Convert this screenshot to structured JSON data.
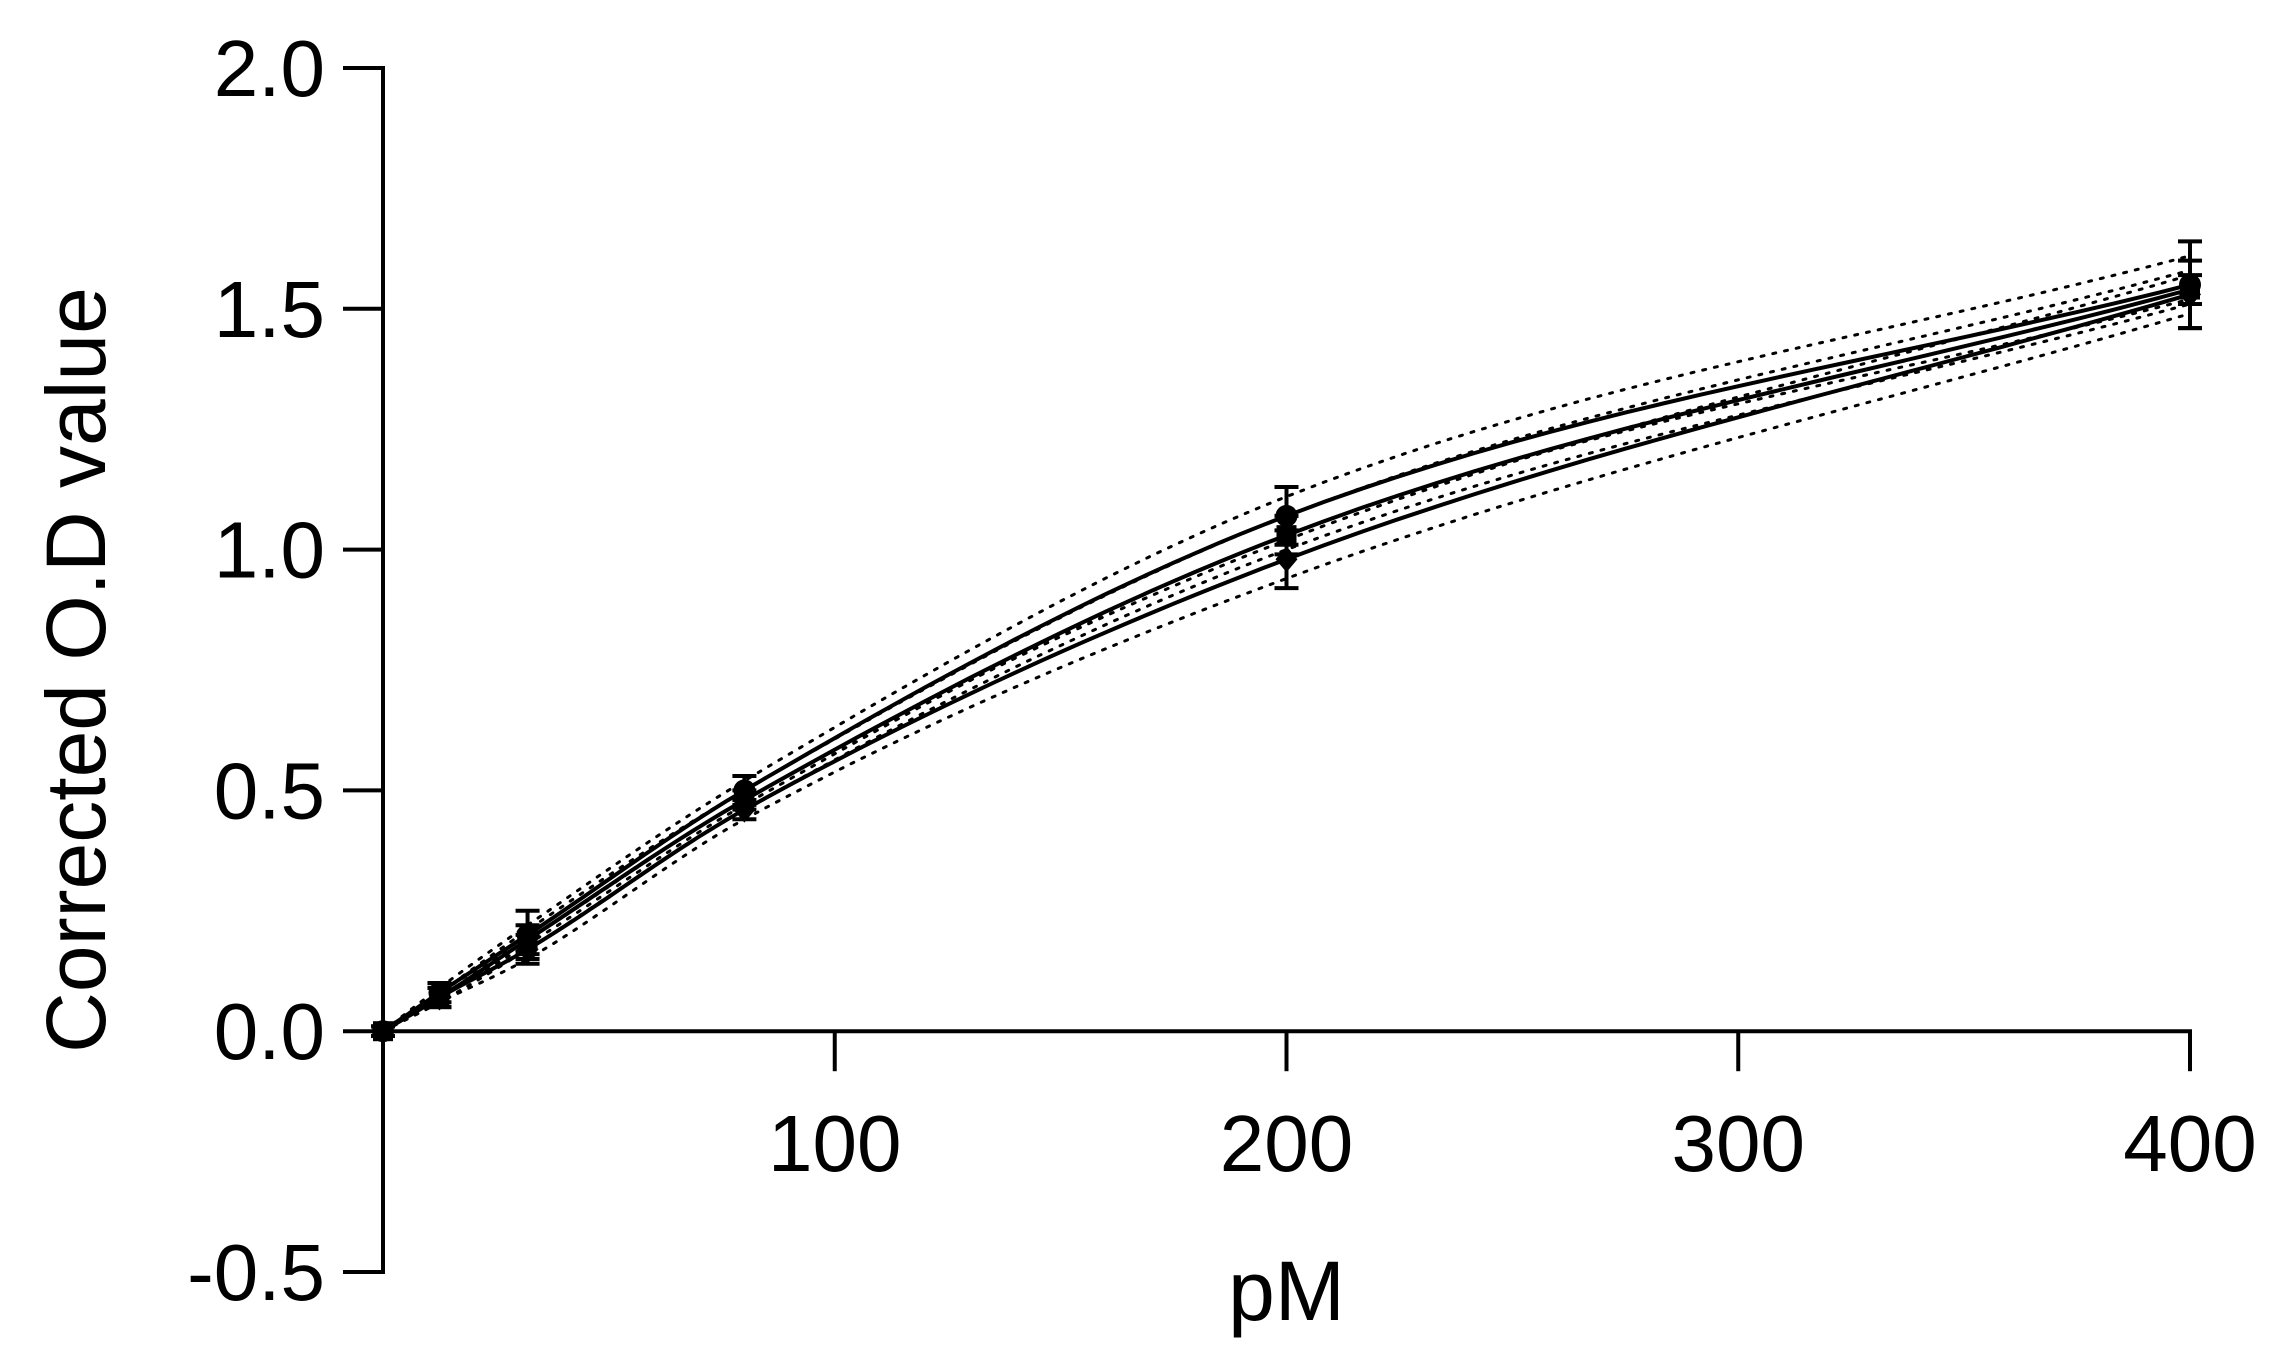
{
  "chart_data": {
    "type": "line",
    "title": "",
    "xlabel": "pM",
    "ylabel": "Corrected O.D value",
    "xlim": [
      0,
      400
    ],
    "ylim": [
      -0.5,
      2.0
    ],
    "x_ticks": [
      100,
      200,
      300,
      400
    ],
    "x_tick_labels": [
      "100",
      "200",
      "300",
      "400"
    ],
    "y_ticks": [
      -0.5,
      0.0,
      0.5,
      1.0,
      1.5,
      2.0
    ],
    "y_tick_labels": [
      "-0.5",
      "0.0",
      "0.5",
      "1.0",
      "1.5",
      "2.0"
    ],
    "grid": false,
    "legend": "none",
    "x": [
      0,
      12.5,
      32,
      80,
      200,
      400
    ],
    "series": [
      {
        "values": [
          0.0,
          0.08,
          0.2,
          0.5,
          1.07,
          1.55
        ],
        "error": [
          0.01,
          0.02,
          0.05,
          0.03,
          0.06,
          0.09
        ],
        "marker": "circle",
        "style": "solid"
      },
      {
        "values": [
          0.0,
          0.07,
          0.19,
          0.48,
          1.03,
          1.54
        ],
        "error": [
          0.01,
          0.02,
          0.03,
          0.02,
          0.04,
          0.03
        ],
        "marker": "square",
        "style": "solid"
      },
      {
        "values": [
          0.0,
          0.07,
          0.17,
          0.46,
          0.98,
          1.53
        ],
        "error": [
          0.01,
          0.02,
          0.03,
          0.02,
          0.06,
          0.07
        ],
        "marker": "diamond",
        "style": "solid"
      }
    ],
    "confidence_bands": [
      {
        "upper": [
          0.0,
          0.09,
          0.22,
          0.52,
          1.11,
          1.61
        ],
        "lower": [
          0.0,
          0.07,
          0.18,
          0.47,
          1.03,
          1.52
        ]
      },
      {
        "upper": [
          0.0,
          0.08,
          0.21,
          0.5,
          1.07,
          1.58
        ],
        "lower": [
          0.0,
          0.06,
          0.17,
          0.46,
          1.0,
          1.51
        ]
      },
      {
        "upper": [
          0.0,
          0.08,
          0.19,
          0.48,
          1.02,
          1.57
        ],
        "lower": [
          0.0,
          0.06,
          0.15,
          0.44,
          0.94,
          1.49
        ]
      }
    ],
    "colors": {
      "line": "#000000",
      "band": "#000000"
    }
  }
}
